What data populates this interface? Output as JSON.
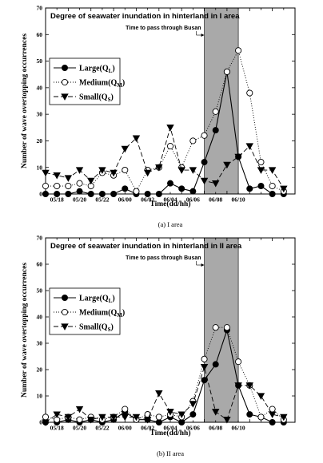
{
  "chart_data": [
    {
      "type": "line",
      "title": "Degree of seawater inundation in hinterland in I area",
      "xlabel": "Time(dd/hh)",
      "ylabel": "Number of wave overtopping occurrences",
      "ylim": [
        0,
        70
      ],
      "xlim": [
        0,
        22
      ],
      "y_ticks": [
        0,
        10,
        20,
        30,
        40,
        50,
        60,
        70
      ],
      "x_tick_labels": [
        "05/18",
        "05/20",
        "05/22",
        "06/00",
        "06/02",
        "06/04",
        "06/06",
        "06/08",
        "06/10"
      ],
      "shaded_region": {
        "x": [
          14,
          17
        ],
        "label": "Time to pass through Busan"
      },
      "caption": "(a)  I  area",
      "legend_placement": "upper-left",
      "grid": false,
      "series": [
        {
          "name": "Large",
          "sub": "L",
          "marker": "filled-circle",
          "line": "solid",
          "x": [
            0,
            1,
            2,
            3,
            4,
            5,
            6,
            7,
            8,
            9,
            10,
            11,
            12,
            13,
            14,
            15,
            16,
            17,
            18,
            19,
            20,
            21
          ],
          "y": [
            0,
            0,
            0,
            1,
            0,
            0,
            0,
            2,
            0,
            0,
            0,
            4,
            2,
            1,
            12,
            24,
            46,
            14,
            2,
            3,
            0,
            0
          ]
        },
        {
          "name": "Medium",
          "sub": "M",
          "marker": "open-circle",
          "line": "dotted",
          "x": [
            0,
            1,
            2,
            3,
            4,
            5,
            6,
            7,
            8,
            9,
            10,
            11,
            12,
            13,
            14,
            15,
            16,
            17,
            18,
            19,
            20,
            21
          ],
          "y": [
            3,
            3,
            3,
            4,
            3,
            8,
            7,
            9,
            1,
            9,
            10,
            18,
            10,
            20,
            22,
            31,
            46,
            54,
            38,
            12,
            3,
            1
          ]
        },
        {
          "name": "Small",
          "sub": "S",
          "marker": "filled-down-triangle",
          "line": "dashed",
          "x": [
            0,
            1,
            2,
            3,
            4,
            5,
            6,
            7,
            8,
            9,
            10,
            11,
            12,
            13,
            14,
            15,
            16,
            17,
            18,
            19,
            20,
            21
          ],
          "y": [
            8,
            7,
            6,
            9,
            5,
            9,
            8,
            17,
            21,
            8,
            10,
            25,
            9,
            9,
            5,
            4,
            11,
            14,
            18,
            9,
            9,
            2
          ]
        }
      ]
    },
    {
      "type": "line",
      "title": "Degree of seawater inundation in hinterland in II area",
      "xlabel": "Time(dd/hh)",
      "ylabel": "Number of wave overtopping occurrences",
      "ylim": [
        0,
        70
      ],
      "xlim": [
        0,
        22
      ],
      "y_ticks": [
        0,
        10,
        20,
        30,
        40,
        50,
        60,
        70
      ],
      "x_tick_labels": [
        "05/18",
        "05/20",
        "05/22",
        "06/00",
        "06/02",
        "06/04",
        "06/06",
        "06/08",
        "06/10"
      ],
      "shaded_region": {
        "x": [
          14,
          17
        ],
        "label": "Time to pass through Busan"
      },
      "caption": "(b)  II  area",
      "legend_placement": "upper-left",
      "grid": false,
      "series": [
        {
          "name": "Large",
          "sub": "L",
          "marker": "filled-circle",
          "line": "solid",
          "x": [
            0,
            1,
            2,
            3,
            4,
            5,
            6,
            7,
            8,
            9,
            10,
            11,
            12,
            13,
            14,
            15,
            16,
            17,
            18,
            19,
            20,
            21
          ],
          "y": [
            0,
            0,
            1,
            0,
            1,
            0,
            1,
            4,
            1,
            1,
            0,
            2,
            0,
            3,
            16,
            22,
            35,
            14,
            3,
            2,
            0,
            0
          ]
        },
        {
          "name": "Medium",
          "sub": "M",
          "marker": "open-circle",
          "line": "dotted",
          "x": [
            0,
            1,
            2,
            3,
            4,
            5,
            6,
            7,
            8,
            9,
            10,
            11,
            12,
            13,
            14,
            15,
            16,
            17,
            18,
            19,
            20,
            21
          ],
          "y": [
            2,
            1,
            2,
            1,
            2,
            1,
            2,
            5,
            1,
            3,
            2,
            3,
            2,
            8,
            24,
            36,
            36,
            23,
            14,
            2,
            5,
            1
          ]
        },
        {
          "name": "Small",
          "sub": "S",
          "marker": "filled-down-triangle",
          "line": "dashed",
          "x": [
            0,
            1,
            2,
            3,
            4,
            5,
            6,
            7,
            8,
            9,
            10,
            11,
            12,
            13,
            14,
            15,
            16,
            17,
            18,
            19,
            20,
            21
          ],
          "y": [
            0,
            3,
            2,
            5,
            1,
            2,
            2,
            2,
            2,
            1,
            11,
            4,
            3,
            7,
            21,
            4,
            1,
            14,
            14,
            10,
            3,
            2
          ]
        }
      ]
    }
  ]
}
